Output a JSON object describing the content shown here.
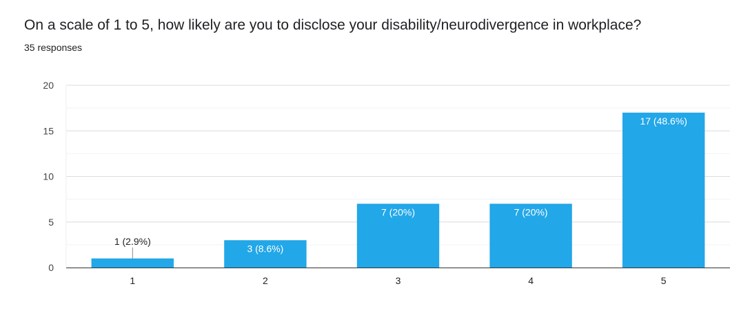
{
  "chart_data": {
    "type": "bar",
    "title": "On a scale of 1 to 5, how likely are you to disclose your disability/neurodivergence in workplace?",
    "subtitle": "35 responses",
    "categories": [
      "1",
      "2",
      "3",
      "4",
      "5"
    ],
    "values": [
      1,
      3,
      7,
      7,
      17
    ],
    "data_labels": [
      "1 (2.9%)",
      "3 (8.6%)",
      "7 (20%)",
      "7 (20%)",
      "17 (48.6%)"
    ],
    "xlabel": "",
    "ylabel": "",
    "ylim": [
      0,
      20
    ],
    "yticks": [
      0,
      5,
      10,
      15,
      20
    ],
    "grid": true,
    "bar_color": "#22a7e8"
  }
}
